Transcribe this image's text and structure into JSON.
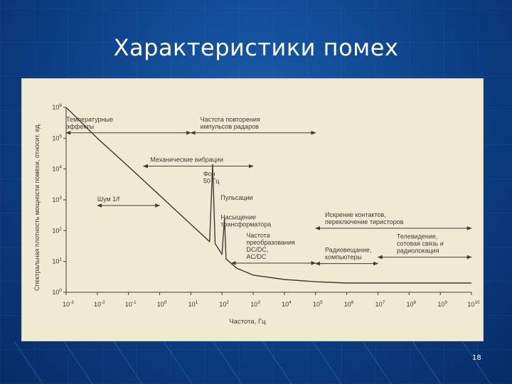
{
  "slide": {
    "title": "Характеристики помех",
    "number": "18"
  },
  "colors": {
    "background": "#0a3f86",
    "figure_bg": "#f1ead3",
    "ink": "#3e3a34"
  },
  "chart_data": {
    "type": "line",
    "xscale": "log",
    "yscale": "log",
    "xlabel": "Частота, Гц",
    "ylabel": "Спектральная плотность мощности помехи, относит. ед.",
    "xlim": [
      0.001,
      10000000000
    ],
    "ylim": [
      1,
      1000000
    ],
    "xticks": [
      {
        "value": 0.001,
        "mant": "10",
        "exp": "-3"
      },
      {
        "value": 0.01,
        "mant": "10",
        "exp": "-2"
      },
      {
        "value": 0.1,
        "mant": "10",
        "exp": "-1"
      },
      {
        "value": 1,
        "mant": "10",
        "exp": "0"
      },
      {
        "value": 10,
        "mant": "10",
        "exp": "1"
      },
      {
        "value": 100,
        "mant": "10",
        "exp": "2"
      },
      {
        "value": 1000,
        "mant": "10",
        "exp": "3"
      },
      {
        "value": 10000,
        "mant": "10",
        "exp": "4"
      },
      {
        "value": 100000,
        "mant": "10",
        "exp": "5"
      },
      {
        "value": 1000000,
        "mant": "10",
        "exp": "6"
      },
      {
        "value": 10000000,
        "mant": "10",
        "exp": "7"
      },
      {
        "value": 100000000,
        "mant": "10",
        "exp": "8"
      },
      {
        "value": 1000000000,
        "mant": "10",
        "exp": "9"
      },
      {
        "value": 10000000000,
        "mant": "10",
        "exp": "10"
      }
    ],
    "yticks": [
      {
        "value": 1,
        "mant": "10",
        "exp": "0"
      },
      {
        "value": 10,
        "mant": "10",
        "exp": "1"
      },
      {
        "value": 100,
        "mant": "10",
        "exp": "2"
      },
      {
        "value": 1000,
        "mant": "10",
        "exp": "3"
      },
      {
        "value": 10000,
        "mant": "10",
        "exp": "4"
      },
      {
        "value": 100000,
        "mant": "10",
        "exp": "5"
      },
      {
        "value": 1000000,
        "mant": "10",
        "exp": "6"
      }
    ],
    "series": [
      {
        "points": [
          [
            0.001,
            1000000
          ],
          [
            0.01,
            100000
          ],
          [
            0.1,
            12000
          ],
          [
            1,
            1400
          ],
          [
            10,
            160
          ],
          [
            40,
            44
          ],
          [
            50,
            14000
          ],
          [
            60,
            38
          ],
          [
            100,
            17
          ],
          [
            120,
            260
          ],
          [
            135,
            12
          ],
          [
            300,
            6
          ],
          [
            1000,
            3.6
          ],
          [
            10000,
            2.6
          ],
          [
            100000,
            2.2
          ],
          [
            1000000,
            2.0
          ],
          [
            100000000,
            2.0
          ],
          [
            10000000000,
            2.0
          ]
        ]
      }
    ],
    "annotations": [
      {
        "lines": [
          "Температурные",
          "эффекты"
        ],
        "x": 0.001,
        "y": 350000,
        "arrow_x": [
          0.001,
          10
        ]
      },
      {
        "lines": [
          "Частота повторения",
          "импульсов радаров"
        ],
        "x": 20,
        "y": 350000,
        "arrow_x": [
          10,
          100000
        ]
      },
      {
        "lines": [
          "Механические вибрации"
        ],
        "x": 0.5,
        "y": 17000,
        "arrow_x": [
          0.3,
          1000
        ]
      },
      {
        "lines": [
          "Фон",
          "50 Гц"
        ],
        "x": 25,
        "y": 6000
      },
      {
        "lines": [
          "Шум 1/f"
        ],
        "x": 0.01,
        "y": 900,
        "arrow_x": [
          0.01,
          1
        ]
      },
      {
        "lines": [
          "Пульсации"
        ],
        "x": 90,
        "y": 1000
      },
      {
        "lines": [
          "Насыщение",
          "трансформатора"
        ],
        "x": 90,
        "y": 230
      },
      {
        "lines": [
          "Частота",
          "преобразования",
          "DC/DC,",
          "AC/DC"
        ],
        "x": 600,
        "y": 60,
        "arrow_x": [
          200,
          100000
        ]
      },
      {
        "lines": [
          "Искрение контактов,",
          "переключение тиристоров"
        ],
        "x": 200000,
        "y": 280,
        "arrow_x": [
          100000,
          10000000000
        ]
      },
      {
        "lines": [
          "Радиовещание,",
          "компьютеры"
        ],
        "x": 200000,
        "y": 20,
        "arrow_x": [
          100000,
          10000000
        ]
      },
      {
        "lines": [
          "Телевидение,",
          "сотовая связь и",
          "радиолокация"
        ],
        "x": 40000000,
        "y": 55,
        "arrow_x": [
          10000000,
          10000000000
        ]
      }
    ]
  }
}
